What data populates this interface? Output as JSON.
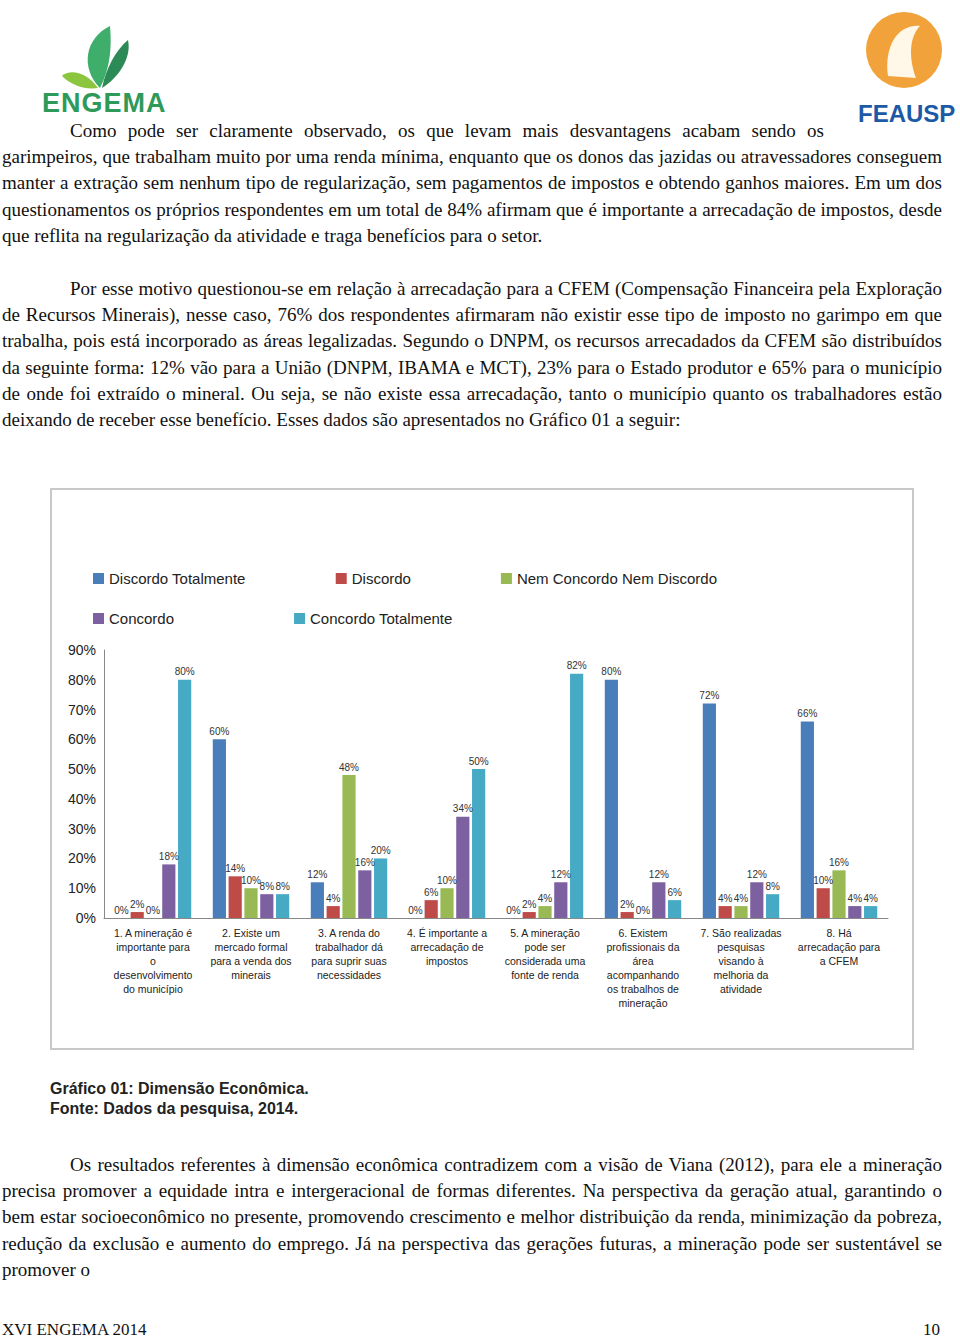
{
  "header": {
    "logo_left": "ENGEMA",
    "logo_right": "FEAUSP"
  },
  "paragraphs": [
    "Como pode ser claramente observado, os que levam mais desvantagens acabam sendo os garimpeiros, que trabalham muito por uma renda mínima, enquanto que os donos das jazidas ou atravessadores conseguem manter a extração sem nenhum tipo de regularização, sem pagamentos de impostos e obtendo ganhos maiores. Em um dos questionamentos os próprios respondentes em um total de 84% afirmam que é importante a arrecadação de impostos, desde que reflita na regularização da atividade e traga benefícios para o setor.",
    "Por esse motivo questionou-se em relação à arrecadação para a CFEM (Compensação Financeira pela Exploração de Recursos Minerais), nesse caso, 76% dos respondentes afirmaram não existir esse tipo de imposto no garimpo em que trabalha, pois está incorporado as áreas legalizadas. Segundo o DNPM, os recursos arrecadados da CFEM são distribuídos da seguinte forma: 12% vão para a União (DNPM, IBAMA e MCT), 23% para o Estado produtor e 65% para o município de onde foi extraído o mineral. Ou seja, se não existe essa arrecadação, tanto o município quanto os trabalhadores estão deixando de receber esse benefício. Esses dados são apresentados no Gráfico 01 a seguir:"
  ],
  "chart_data": {
    "type": "bar",
    "categories": [
      "1. A mineração é\nimportante para\no\ndesenvolvimento\ndo município",
      "2. Existe um\nmercado formal\npara a venda dos\nminerais",
      "3. A renda do\ntrabalhador dá\npara suprir suas\nnecessidades",
      "4. É importante a\narrecadação de\nimpostos",
      "5. A mineração\npode ser\nconsiderada uma\nfonte de renda",
      "6. Existem\nprofissionais da\nárea\nacompanhando\nos trabalhos de\nmineração",
      "7. São realizadas\npesquisas\nvisando à\nmelhoria da\natividade",
      "8. Há\narrecadação para\na CFEM"
    ],
    "series": [
      {
        "name": "Discordo Totalmente",
        "color": "#4a7ebb",
        "values": [
          0,
          60,
          12,
          0,
          0,
          80,
          72,
          66
        ],
        "value_labels": [
          "0%",
          "60%",
          "12%",
          "0%",
          "0%",
          "80%",
          "72%",
          "66%"
        ]
      },
      {
        "name": "Discordo",
        "color": "#be4b48",
        "values": [
          2,
          14,
          4,
          6,
          2,
          2,
          4,
          10
        ],
        "value_labels": [
          "2%",
          "14%",
          "4%",
          "6%",
          "2%",
          "2%",
          "4%",
          "10%"
        ]
      },
      {
        "name": "Nem Concordo Nem Discordo",
        "color": "#98b954",
        "values": [
          0,
          10,
          48,
          10,
          4,
          0,
          4,
          16
        ],
        "value_labels": [
          "0%",
          "10%",
          "48%",
          "10%",
          "4%",
          "0%",
          "4%",
          "16%"
        ]
      },
      {
        "name": "Concordo",
        "color": "#7d60a0",
        "values": [
          18,
          8,
          16,
          34,
          12,
          12,
          12,
          4
        ],
        "value_labels": [
          "18%",
          "8%",
          "16%",
          "34%",
          "12%",
          "12%",
          "12%",
          "4%"
        ]
      },
      {
        "name": "Concordo Totalmente",
        "color": "#46aac5",
        "values": [
          80,
          8,
          20,
          50,
          82,
          6,
          8,
          4
        ],
        "value_labels": [
          "80%",
          "8%",
          "20%",
          "50%",
          "82%",
          "6%",
          "8%",
          "4%"
        ]
      }
    ],
    "ylim": [
      0,
      90
    ],
    "yticks": [
      {
        "value": 0,
        "label": "0%"
      },
      {
        "value": 10,
        "label": "10%"
      },
      {
        "value": 20,
        "label": "20%"
      },
      {
        "value": 30,
        "label": "30%"
      },
      {
        "value": 40,
        "label": "40%"
      },
      {
        "value": 50,
        "label": "50%"
      },
      {
        "value": 60,
        "label": "60%"
      },
      {
        "value": 70,
        "label": "70%"
      },
      {
        "value": 80,
        "label": "80%"
      },
      {
        "value": 90,
        "label": "90%"
      }
    ],
    "grid": false,
    "legend": "top",
    "data_labels": true
  },
  "caption": [
    "Gráfico 01: Dimensão Econômica.",
    "Fonte: Dados da pesquisa, 2014."
  ],
  "paragraphs_after": [
    "Os resultados referentes à dimensão econômica contradizem com a visão de Viana (2012), para ele a mineração precisa promover a equidade intra e intergeracional de formas diferentes. Na perspectiva da geração atual, garantindo o bem estar socioeconômico no presente, promovendo crescimento e melhor distribuição da renda, minimização da pobreza, redução da exclusão e aumento do emprego. Já na perspectiva das gerações futuras, a mineração pode ser sustentável se promover o"
  ],
  "footer": {
    "left": "XVI ENGEMA 2014",
    "right": "10"
  }
}
